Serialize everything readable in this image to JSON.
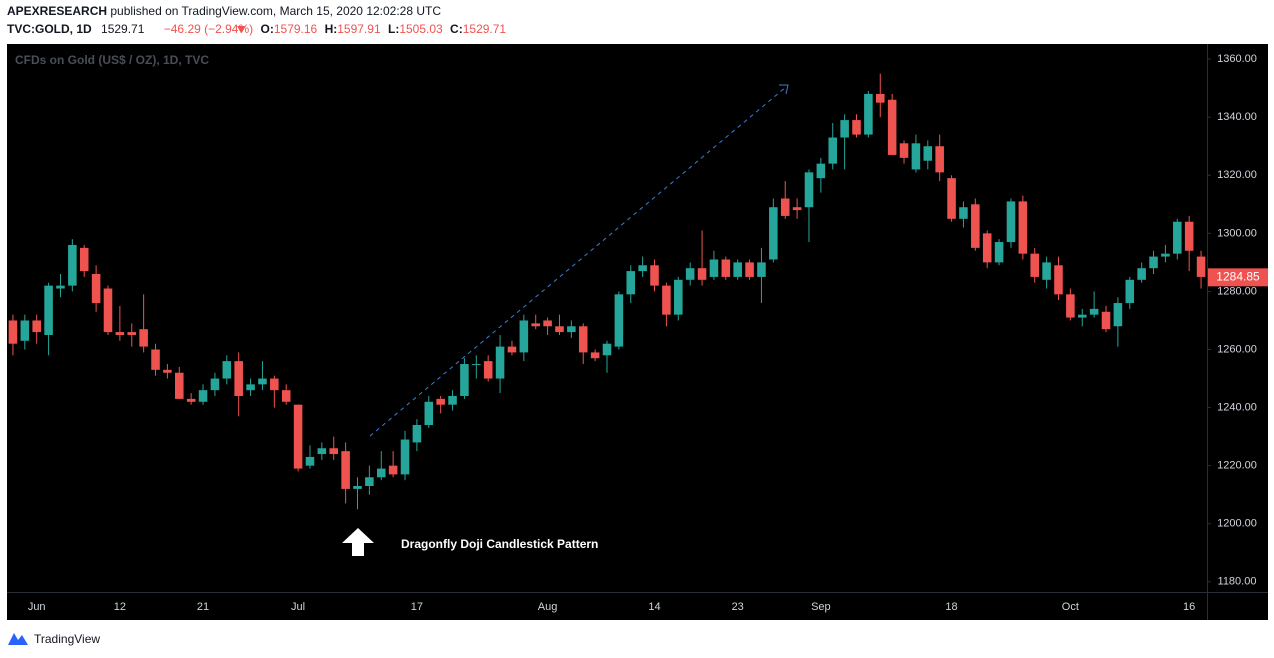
{
  "header": {
    "author": "APEXRESEARCH",
    "published": "published on TradingView.com, March 15, 2020 12:02:28 UTC",
    "symbol": "TVC:GOLD, 1D",
    "price": "1529.71",
    "change": "−46.29 (−2.94%)",
    "ohlc": [
      {
        "label": "O:",
        "value": "1579.16"
      },
      {
        "label": "H:",
        "value": "1597.91"
      },
      {
        "label": "L:",
        "value": "1505.03"
      },
      {
        "label": "C:",
        "value": "1529.71"
      }
    ]
  },
  "chart_data": {
    "type": "candlestick",
    "title": "CFDs on Gold (US$ / OZ), 1D, TVC",
    "annotation": "Dragonfly Doji Candlestick Pattern",
    "up_color": "#26a69a",
    "down_color": "#ef5350",
    "grid": false,
    "categories": [
      null,
      null,
      "Jun",
      null,
      null,
      null,
      null,
      null,
      null,
      "12",
      null,
      null,
      null,
      null,
      null,
      null,
      "21",
      null,
      null,
      null,
      null,
      null,
      null,
      null,
      "Jul",
      null,
      null,
      null,
      null,
      null,
      null,
      null,
      null,
      null,
      "17",
      null,
      null,
      null,
      null,
      null,
      null,
      null,
      null,
      null,
      null,
      "Aug",
      null,
      null,
      null,
      null,
      null,
      null,
      null,
      null,
      "14",
      null,
      null,
      null,
      null,
      null,
      null,
      "23",
      null,
      null,
      null,
      null,
      null,
      null,
      "Sep",
      null,
      null,
      null,
      null,
      null,
      null,
      null,
      null,
      null,
      null,
      "18",
      null,
      null,
      null,
      null,
      null,
      null,
      null,
      null,
      null,
      "Oct",
      null,
      null,
      null,
      null,
      null,
      null,
      null,
      null,
      null,
      "16",
      null
    ],
    "open": [
      1270,
      1263,
      1270,
      1265,
      1281,
      1282,
      1295,
      1286,
      1281,
      1266,
      1266,
      1267,
      1260,
      1253,
      1252,
      1243,
      1242,
      1246,
      1250,
      1256,
      1246,
      1248,
      1250,
      1246,
      1241,
      1220,
      1224,
      1226,
      1225,
      1212,
      1213,
      1216,
      1220,
      1217,
      1228,
      1234,
      1243,
      1241,
      1244,
      1255,
      1256,
      1250,
      1261,
      1259,
      1269,
      1270,
      1268,
      1266,
      1268,
      1259,
      1258,
      1261,
      1279,
      1287,
      1289,
      1282,
      1272,
      1284,
      1288,
      1285,
      1291,
      1285,
      1290,
      1285,
      1291,
      1312,
      1309,
      1309,
      1319,
      1324,
      1333,
      1339,
      1334,
      1348,
      1346,
      1331,
      1322,
      1325,
      1330,
      1319,
      1305,
      1310,
      1300,
      1290,
      1297,
      1311,
      1293,
      1284,
      1289,
      1279,
      1271,
      1272,
      1273,
      1268,
      1276,
      1284,
      1288,
      1292,
      1293,
      1304,
      1292
    ],
    "high": [
      1272,
      1272,
      1272,
      1283,
      1286,
      1298,
      1296,
      1289,
      1282,
      1275,
      1269,
      1279,
      1262,
      1255,
      1254,
      1245,
      1248,
      1252,
      1258,
      1259,
      1250,
      1256,
      1251,
      1248,
      1241,
      1227,
      1228,
      1230,
      1228,
      1216,
      1220,
      1225,
      1225,
      1232,
      1236,
      1244,
      1244,
      1246,
      1257,
      1258,
      1258,
      1265,
      1263,
      1272,
      1272,
      1271,
      1272,
      1270,
      1269,
      1260,
      1263,
      1280,
      1289,
      1292,
      1291,
      1283,
      1285,
      1290,
      1301,
      1294,
      1292,
      1291,
      1291,
      1295,
      1312,
      1318,
      1312,
      1322,
      1326,
      1338,
      1341,
      1341,
      1349,
      1355,
      1348,
      1332,
      1334,
      1332,
      1334,
      1320,
      1311,
      1312,
      1301,
      1298,
      1312,
      1313,
      1295,
      1292,
      1292,
      1281,
      1274,
      1280,
      1275,
      1278,
      1285,
      1290,
      1294,
      1296,
      1305,
      1306,
      1294
    ],
    "low": [
      1258,
      1260,
      1262,
      1258,
      1278,
      1280,
      1285,
      1273,
      1265,
      1263,
      1261,
      1259,
      1251,
      1250,
      1243,
      1241,
      1241,
      1244,
      1248,
      1237,
      1244,
      1246,
      1240,
      1241,
      1218,
      1219,
      1222,
      1222,
      1207,
      1205,
      1210,
      1215,
      1216,
      1215,
      1225,
      1233,
      1238,
      1239,
      1243,
      1250,
      1249,
      1245,
      1258,
      1256,
      1267,
      1265,
      1265,
      1264,
      1255,
      1256,
      1252,
      1260,
      1276,
      1285,
      1280,
      1268,
      1270,
      1282,
      1282,
      1284,
      1284,
      1284,
      1284,
      1276,
      1290,
      1305,
      1305,
      1297,
      1314,
      1322,
      1322,
      1333,
      1333,
      1340,
      1327,
      1324,
      1321,
      1322,
      1318,
      1304,
      1302,
      1294,
      1288,
      1289,
      1295,
      1291,
      1283,
      1281,
      1277,
      1270,
      1268,
      1271,
      1266,
      1261,
      1274,
      1283,
      1286,
      1290,
      1291,
      1287,
      1281
    ],
    "close": [
      1262,
      1270,
      1266,
      1282,
      1282,
      1296,
      1287,
      1276,
      1266,
      1265,
      1265,
      1261,
      1253,
      1252,
      1243,
      1242,
      1246,
      1250,
      1256,
      1244,
      1248,
      1250,
      1246,
      1242,
      1219,
      1223,
      1226,
      1224,
      1212,
      1213,
      1216,
      1219,
      1217,
      1229,
      1234,
      1242,
      1241,
      1244,
      1255,
      1255,
      1250,
      1261,
      1259,
      1270,
      1268,
      1268,
      1266,
      1268,
      1259,
      1257,
      1262,
      1279,
      1287,
      1289,
      1282,
      1272,
      1284,
      1288,
      1284,
      1291,
      1285,
      1290,
      1285,
      1290,
      1309,
      1306,
      1308,
      1321,
      1324,
      1333,
      1339,
      1334,
      1348,
      1345,
      1327,
      1326,
      1331,
      1330,
      1321,
      1305,
      1309,
      1295,
      1290,
      1297,
      1311,
      1293,
      1285,
      1290,
      1279,
      1271,
      1272,
      1274,
      1267,
      1276,
      1284,
      1288,
      1292,
      1293,
      1304,
      1294,
      1285
    ],
    "last_price": 1284.85,
    "ylim": [
      1176.5,
      1365.2
    ],
    "yticks": [
      {
        "value": 1180,
        "label": "1180.00"
      },
      {
        "value": 1200,
        "label": "1200.00"
      },
      {
        "value": 1220,
        "label": "1220.00"
      },
      {
        "value": 1240,
        "label": "1240.00"
      },
      {
        "value": 1260,
        "label": "1260.00"
      },
      {
        "value": 1280,
        "label": "1280.00"
      },
      {
        "value": 1300,
        "label": "1300.00"
      },
      {
        "value": 1320,
        "label": "1320.00"
      },
      {
        "value": 1340,
        "label": "1340.00"
      },
      {
        "value": 1360,
        "label": "1360.00"
      }
    ]
  },
  "footer": {
    "brand": "TradingView"
  }
}
